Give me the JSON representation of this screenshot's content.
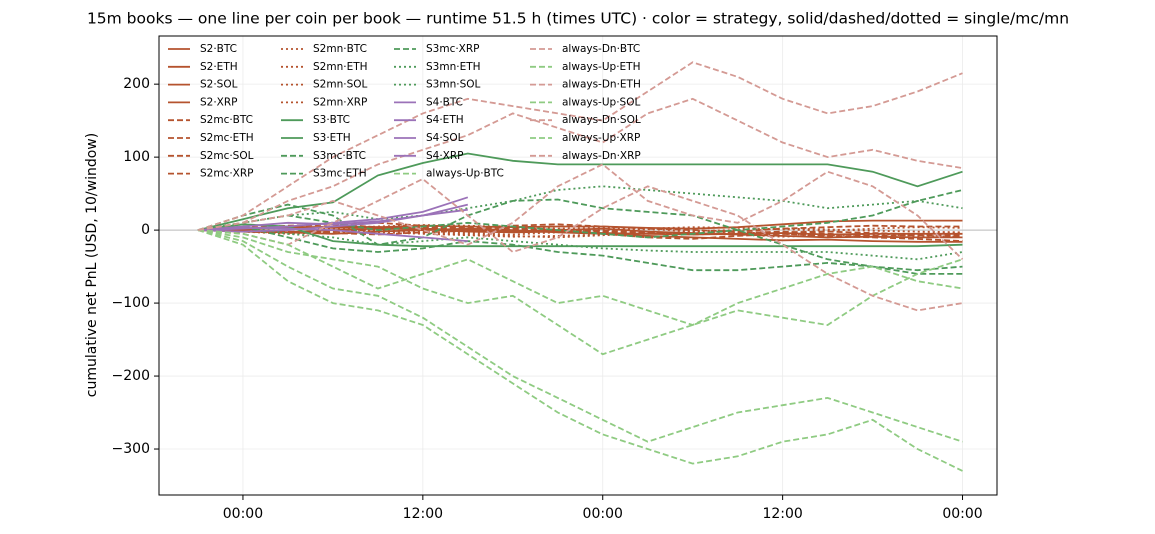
{
  "chart_data": {
    "type": "line",
    "title": "15m books — one line per coin per book — runtime 51.5 h (times UTC) · color = strategy, solid/dashed/dotted = single/mc/mn",
    "y_label": "cumulative net PnL (USD, 10/window)",
    "x": [
      -3,
      0,
      3,
      6,
      9,
      12,
      15,
      18,
      21,
      24,
      27,
      30,
      33,
      36,
      39,
      42,
      45,
      48
    ],
    "xlim": [
      -5.6,
      50.3
    ],
    "xticks": [
      {
        "value": 0,
        "label": "00:00"
      },
      {
        "value": 12,
        "label": "12:00"
      },
      {
        "value": 24,
        "label": "00:00"
      },
      {
        "value": 36,
        "label": "12:00"
      },
      {
        "value": 48,
        "label": "00:00"
      }
    ],
    "ylim": [
      -363,
      266
    ],
    "yticks": [
      {
        "value": -300,
        "label": "−300"
      },
      {
        "value": -200,
        "label": "−200"
      },
      {
        "value": -100,
        "label": "−100"
      },
      0,
      100,
      200
    ],
    "grid": true,
    "legend": "upper left",
    "series": [
      {
        "name": "S2·BTC",
        "color": "#b5532e",
        "style": "solid",
        "values": [
          0,
          2,
          5,
          3,
          4,
          6,
          5,
          4,
          5,
          5,
          3,
          2,
          4,
          8,
          12,
          13,
          13,
          13
        ]
      },
      {
        "name": "S2·ETH",
        "color": "#b5532e",
        "style": "solid",
        "values": [
          0,
          -2,
          -3,
          0,
          2,
          1,
          -2,
          -3,
          -2,
          -4,
          -5,
          -6,
          -5,
          -4,
          -6,
          -5,
          -5,
          -5
        ]
      },
      {
        "name": "S2·SOL",
        "color": "#b5532e",
        "style": "solid",
        "values": [
          0,
          1,
          3,
          5,
          4,
          2,
          0,
          -2,
          0,
          2,
          -2,
          -4,
          -6,
          -8,
          -10,
          -9,
          -10,
          -10
        ]
      },
      {
        "name": "S2·XRP",
        "color": "#b5532e",
        "style": "solid",
        "values": [
          0,
          -1,
          -3,
          -5,
          -2,
          0,
          2,
          0,
          -3,
          -5,
          -8,
          -10,
          -12,
          -14,
          -13,
          -15,
          -16,
          -16
        ]
      },
      {
        "name": "S2mc·BTC",
        "color": "#b5532e",
        "style": "dashed",
        "values": [
          0,
          3,
          6,
          8,
          4,
          2,
          5,
          3,
          0,
          -5,
          -10,
          -12,
          -8,
          -5,
          -8,
          -10,
          -12,
          -15
        ]
      },
      {
        "name": "S2mc·ETH",
        "color": "#b5532e",
        "style": "dashed",
        "values": [
          0,
          -2,
          -4,
          -2,
          1,
          4,
          3,
          6,
          8,
          5,
          2,
          0,
          -2,
          2,
          4,
          6,
          5,
          5
        ]
      },
      {
        "name": "S2mc·SOL",
        "color": "#b5532e",
        "style": "dashed",
        "values": [
          0,
          2,
          5,
          8,
          10,
          6,
          4,
          2,
          0,
          -2,
          -4,
          -5,
          -6,
          -3,
          -2,
          -4,
          -6,
          -6
        ]
      },
      {
        "name": "S2mc·XRP",
        "color": "#b5532e",
        "style": "dashed",
        "values": [
          0,
          -1,
          -2,
          -4,
          -6,
          -3,
          -1,
          0,
          1,
          -1,
          -3,
          -6,
          -4,
          -2,
          -5,
          -8,
          -7,
          -8
        ]
      },
      {
        "name": "S2mn·BTC",
        "color": "#b5532e",
        "style": "dotted",
        "values": [
          0,
          1,
          3,
          2,
          0,
          -2,
          -4,
          -6,
          -3,
          0,
          2,
          4,
          3,
          1,
          -1,
          2,
          4,
          3
        ]
      },
      {
        "name": "S2mn·ETH",
        "color": "#b5532e",
        "style": "dotted",
        "values": [
          0,
          -1,
          -2,
          -4,
          -3,
          -5,
          -7,
          -9,
          -8,
          -6,
          -4,
          -2,
          -3,
          -5,
          -7,
          -6,
          -5,
          -4
        ]
      },
      {
        "name": "S2mn·SOL",
        "color": "#b5532e",
        "style": "dotted",
        "values": [
          0,
          2,
          4,
          3,
          5,
          7,
          6,
          4,
          2,
          3,
          1,
          -1,
          0,
          2,
          1,
          -1,
          -2,
          -3
        ]
      },
      {
        "name": "S2mn·XRP",
        "color": "#b5532e",
        "style": "dotted",
        "values": [
          0,
          -2,
          -5,
          -3,
          -1,
          -4,
          -6,
          -8,
          -10,
          -7,
          -5,
          -3,
          -6,
          -9,
          -7,
          -5,
          -8,
          -9
        ]
      },
      {
        "name": "S3·BTC",
        "color": "#4e9a5a",
        "style": "solid",
        "values": [
          0,
          15,
          30,
          38,
          75,
          92,
          105,
          95,
          90,
          90,
          90,
          90,
          90,
          90,
          90,
          80,
          60,
          80
        ]
      },
      {
        "name": "S3·ETH",
        "color": "#4e9a5a",
        "style": "solid",
        "values": [
          0,
          8,
          5,
          -15,
          -20,
          -22,
          -22,
          -22,
          -22,
          -22,
          -22,
          -22,
          -22,
          -22,
          -22,
          -22,
          -22,
          -20
        ]
      },
      {
        "name": "S3mc·BTC",
        "color": "#4e9a5a",
        "style": "dashed",
        "values": [
          0,
          20,
          35,
          20,
          -20,
          -10,
          20,
          40,
          42,
          30,
          25,
          20,
          0,
          -20,
          -40,
          -50,
          -55,
          -50
        ]
      },
      {
        "name": "S3mc·ETH",
        "color": "#4e9a5a",
        "style": "dashed",
        "values": [
          0,
          5,
          -10,
          -25,
          -30,
          -25,
          -15,
          -20,
          -30,
          -35,
          -45,
          -55,
          -55,
          -50,
          -45,
          -50,
          -60,
          -60
        ]
      },
      {
        "name": "S3mc·XRP",
        "color": "#4e9a5a",
        "style": "dashed",
        "values": [
          0,
          10,
          20,
          10,
          0,
          5,
          10,
          5,
          0,
          -5,
          -10,
          -5,
          0,
          5,
          10,
          20,
          40,
          55
        ]
      },
      {
        "name": "S3mn·ETH",
        "color": "#4e9a5a",
        "style": "dotted",
        "values": [
          0,
          5,
          -5,
          -10,
          -20,
          -15,
          -10,
          -15,
          -20,
          -25,
          -28,
          -30,
          -30,
          -30,
          -30,
          -35,
          -40,
          -30
        ]
      },
      {
        "name": "S3mn·SOL",
        "color": "#4e9a5a",
        "style": "dotted",
        "values": [
          0,
          10,
          20,
          25,
          15,
          20,
          30,
          40,
          55,
          60,
          55,
          50,
          45,
          40,
          30,
          35,
          40,
          30
        ]
      },
      {
        "name": "S4·BTC",
        "color": "#9b72b8",
        "style": "solid",
        "values": [
          0,
          5,
          10,
          8,
          12,
          20,
          28,
          null,
          null,
          null,
          null,
          null,
          null,
          null,
          null,
          null,
          null,
          null
        ]
      },
      {
        "name": "S4·ETH",
        "color": "#9b72b8",
        "style": "solid",
        "values": [
          0,
          2,
          5,
          10,
          15,
          25,
          45,
          null,
          null,
          null,
          null,
          null,
          null,
          null,
          null,
          null,
          null,
          null
        ]
      },
      {
        "name": "S4·SOL",
        "color": "#9b72b8",
        "style": "solid",
        "values": [
          0,
          -2,
          0,
          5,
          10,
          20,
          35,
          null,
          null,
          null,
          null,
          null,
          null,
          null,
          null,
          null,
          null,
          null
        ]
      },
      {
        "name": "S4·XRP",
        "color": "#9b72b8",
        "style": "solid",
        "values": [
          0,
          3,
          2,
          0,
          -5,
          -10,
          -15,
          null,
          null,
          null,
          null,
          null,
          null,
          null,
          null,
          null,
          null,
          null
        ]
      },
      {
        "name": "always-Up·BTC",
        "color": "#8fcb82",
        "style": "dashed",
        "values": [
          0,
          -15,
          -50,
          -80,
          -90,
          -120,
          -160,
          -200,
          -230,
          -260,
          -290,
          -270,
          -250,
          -240,
          -230,
          -250,
          -270,
          -290
        ]
      },
      {
        "name": "always-Dn·BTC",
        "color": "#d49a94",
        "style": "dashed",
        "values": [
          0,
          20,
          60,
          100,
          130,
          160,
          180,
          170,
          160,
          150,
          190,
          230,
          210,
          180,
          160,
          170,
          190,
          215
        ]
      },
      {
        "name": "always-Up·ETH",
        "color": "#8fcb82",
        "style": "dashed",
        "values": [
          0,
          -20,
          -70,
          -100,
          -110,
          -130,
          -170,
          -210,
          -250,
          -280,
          -300,
          -320,
          -310,
          -290,
          -280,
          -260,
          -300,
          -330
        ]
      },
      {
        "name": "always-Dn·ETH",
        "color": "#d49a94",
        "style": "dashed",
        "values": [
          0,
          10,
          40,
          60,
          90,
          110,
          130,
          160,
          140,
          120,
          160,
          180,
          150,
          120,
          100,
          110,
          95,
          85
        ]
      },
      {
        "name": "always-Up·SOL",
        "color": "#8fcb82",
        "style": "dashed",
        "values": [
          0,
          -10,
          -30,
          -40,
          -50,
          -80,
          -100,
          -90,
          -130,
          -170,
          -150,
          -130,
          -110,
          -120,
          -130,
          -90,
          -60,
          -40
        ]
      },
      {
        "name": "always-Dn·SOL",
        "color": "#d49a94",
        "style": "dashed",
        "values": [
          0,
          -5,
          -20,
          10,
          40,
          70,
          20,
          -30,
          -10,
          30,
          60,
          40,
          20,
          -20,
          -60,
          -90,
          -110,
          -100
        ]
      },
      {
        "name": "always-Up·XRP",
        "color": "#8fcb82",
        "style": "dashed",
        "values": [
          0,
          -5,
          -20,
          -50,
          -80,
          -60,
          -40,
          -70,
          -100,
          -90,
          -110,
          -130,
          -100,
          -80,
          -60,
          -50,
          -70,
          -80
        ]
      },
      {
        "name": "always-Dn·XRP",
        "color": "#d49a94",
        "style": "dashed",
        "values": [
          0,
          10,
          20,
          40,
          20,
          0,
          -20,
          10,
          60,
          90,
          40,
          20,
          10,
          40,
          80,
          60,
          20,
          -40
        ]
      }
    ]
  }
}
